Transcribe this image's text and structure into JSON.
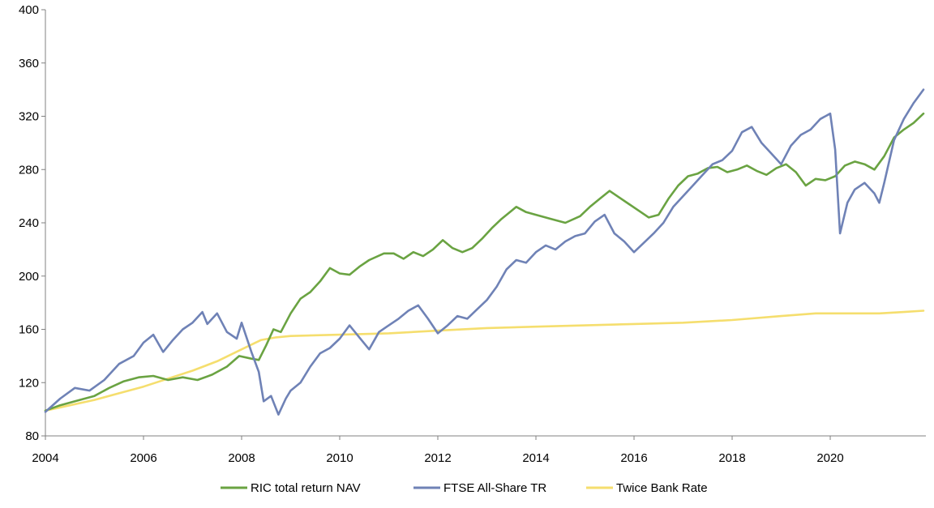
{
  "chart_data": {
    "type": "line",
    "title": "",
    "xlabel": "",
    "ylabel": "",
    "xlim": [
      2004,
      2021.95
    ],
    "ylim": [
      80,
      400
    ],
    "grid": false,
    "legend_position": "bottom",
    "yticks": [
      80,
      120,
      160,
      200,
      240,
      280,
      320,
      360,
      400
    ],
    "xticks": [
      2004,
      2006,
      2008,
      2010,
      2012,
      2014,
      2016,
      2018,
      2020
    ],
    "ytick_labels": [
      "80",
      "120",
      "160",
      "200",
      "240",
      "280",
      "320",
      "360",
      "400"
    ],
    "xtick_labels": [
      "2004",
      "2006",
      "2008",
      "2010",
      "2012",
      "2014",
      "2016",
      "2018",
      "2020"
    ],
    "series": [
      {
        "name": "RIC total return NAV",
        "color": "#6aa342",
        "points": [
          [
            2004.0,
            99
          ],
          [
            2004.3,
            103
          ],
          [
            2004.7,
            107
          ],
          [
            2005.0,
            110
          ],
          [
            2005.3,
            116
          ],
          [
            2005.6,
            121
          ],
          [
            2005.9,
            124
          ],
          [
            2006.2,
            125
          ],
          [
            2006.5,
            122
          ],
          [
            2006.8,
            124
          ],
          [
            2007.1,
            122
          ],
          [
            2007.4,
            126
          ],
          [
            2007.7,
            132
          ],
          [
            2007.95,
            140
          ],
          [
            2008.2,
            138
          ],
          [
            2008.35,
            137
          ],
          [
            2008.5,
            148
          ],
          [
            2008.65,
            160
          ],
          [
            2008.8,
            158
          ],
          [
            2009.0,
            172
          ],
          [
            2009.2,
            183
          ],
          [
            2009.4,
            188
          ],
          [
            2009.6,
            196
          ],
          [
            2009.8,
            206
          ],
          [
            2010.0,
            202
          ],
          [
            2010.2,
            201
          ],
          [
            2010.4,
            207
          ],
          [
            2010.6,
            212
          ],
          [
            2010.9,
            217
          ],
          [
            2011.1,
            217
          ],
          [
            2011.3,
            213
          ],
          [
            2011.5,
            218
          ],
          [
            2011.7,
            215
          ],
          [
            2011.9,
            220
          ],
          [
            2012.1,
            227
          ],
          [
            2012.3,
            221
          ],
          [
            2012.5,
            218
          ],
          [
            2012.7,
            221
          ],
          [
            2012.9,
            228
          ],
          [
            2013.1,
            236
          ],
          [
            2013.3,
            243
          ],
          [
            2013.5,
            249
          ],
          [
            2013.6,
            252
          ],
          [
            2013.8,
            248
          ],
          [
            2014.0,
            246
          ],
          [
            2014.3,
            243
          ],
          [
            2014.6,
            240
          ],
          [
            2014.9,
            245
          ],
          [
            2015.1,
            252
          ],
          [
            2015.3,
            258
          ],
          [
            2015.5,
            264
          ],
          [
            2015.7,
            259
          ],
          [
            2015.9,
            254
          ],
          [
            2016.1,
            249
          ],
          [
            2016.3,
            244
          ],
          [
            2016.5,
            246
          ],
          [
            2016.7,
            258
          ],
          [
            2016.9,
            268
          ],
          [
            2017.1,
            275
          ],
          [
            2017.3,
            277
          ],
          [
            2017.5,
            281
          ],
          [
            2017.7,
            282
          ],
          [
            2017.9,
            278
          ],
          [
            2018.1,
            280
          ],
          [
            2018.3,
            283
          ],
          [
            2018.5,
            279
          ],
          [
            2018.7,
            276
          ],
          [
            2018.9,
            281
          ],
          [
            2019.1,
            284
          ],
          [
            2019.3,
            278
          ],
          [
            2019.5,
            268
          ],
          [
            2019.7,
            273
          ],
          [
            2019.9,
            272
          ],
          [
            2020.1,
            275
          ],
          [
            2020.3,
            283
          ],
          [
            2020.5,
            286
          ],
          [
            2020.7,
            284
          ],
          [
            2020.9,
            280
          ],
          [
            2021.1,
            290
          ],
          [
            2021.3,
            304
          ],
          [
            2021.5,
            310
          ],
          [
            2021.7,
            315
          ],
          [
            2021.9,
            322
          ]
        ]
      },
      {
        "name": "FTSE All-Share TR",
        "color": "#6f82b6",
        "points": [
          [
            2004.0,
            98
          ],
          [
            2004.3,
            108
          ],
          [
            2004.6,
            116
          ],
          [
            2004.9,
            114
          ],
          [
            2005.2,
            122
          ],
          [
            2005.5,
            134
          ],
          [
            2005.8,
            140
          ],
          [
            2006.0,
            150
          ],
          [
            2006.2,
            156
          ],
          [
            2006.4,
            143
          ],
          [
            2006.6,
            152
          ],
          [
            2006.8,
            160
          ],
          [
            2007.0,
            165
          ],
          [
            2007.2,
            173
          ],
          [
            2007.3,
            164
          ],
          [
            2007.5,
            172
          ],
          [
            2007.7,
            158
          ],
          [
            2007.9,
            153
          ],
          [
            2008.0,
            165
          ],
          [
            2008.2,
            143
          ],
          [
            2008.35,
            128
          ],
          [
            2008.45,
            106
          ],
          [
            2008.6,
            110
          ],
          [
            2008.75,
            96
          ],
          [
            2008.9,
            108
          ],
          [
            2009.0,
            114
          ],
          [
            2009.2,
            120
          ],
          [
            2009.4,
            132
          ],
          [
            2009.6,
            142
          ],
          [
            2009.8,
            146
          ],
          [
            2010.0,
            153
          ],
          [
            2010.2,
            163
          ],
          [
            2010.4,
            154
          ],
          [
            2010.6,
            145
          ],
          [
            2010.8,
            158
          ],
          [
            2011.0,
            163
          ],
          [
            2011.2,
            168
          ],
          [
            2011.4,
            174
          ],
          [
            2011.6,
            178
          ],
          [
            2011.8,
            168
          ],
          [
            2012.0,
            157
          ],
          [
            2012.2,
            163
          ],
          [
            2012.4,
            170
          ],
          [
            2012.6,
            168
          ],
          [
            2012.8,
            175
          ],
          [
            2013.0,
            182
          ],
          [
            2013.2,
            192
          ],
          [
            2013.4,
            205
          ],
          [
            2013.6,
            212
          ],
          [
            2013.8,
            210
          ],
          [
            2014.0,
            218
          ],
          [
            2014.2,
            223
          ],
          [
            2014.4,
            220
          ],
          [
            2014.6,
            226
          ],
          [
            2014.8,
            230
          ],
          [
            2015.0,
            232
          ],
          [
            2015.2,
            241
          ],
          [
            2015.4,
            246
          ],
          [
            2015.6,
            232
          ],
          [
            2015.8,
            226
          ],
          [
            2016.0,
            218
          ],
          [
            2016.2,
            225
          ],
          [
            2016.4,
            232
          ],
          [
            2016.6,
            240
          ],
          [
            2016.8,
            252
          ],
          [
            2017.0,
            260
          ],
          [
            2017.2,
            268
          ],
          [
            2017.4,
            276
          ],
          [
            2017.6,
            284
          ],
          [
            2017.8,
            287
          ],
          [
            2018.0,
            294
          ],
          [
            2018.2,
            308
          ],
          [
            2018.4,
            312
          ],
          [
            2018.6,
            300
          ],
          [
            2018.8,
            292
          ],
          [
            2019.0,
            284
          ],
          [
            2019.2,
            298
          ],
          [
            2019.4,
            306
          ],
          [
            2019.6,
            310
          ],
          [
            2019.8,
            318
          ],
          [
            2020.0,
            322
          ],
          [
            2020.1,
            295
          ],
          [
            2020.2,
            232
          ],
          [
            2020.35,
            255
          ],
          [
            2020.5,
            265
          ],
          [
            2020.7,
            270
          ],
          [
            2020.9,
            262
          ],
          [
            2021.0,
            255
          ],
          [
            2021.1,
            270
          ],
          [
            2021.3,
            302
          ],
          [
            2021.5,
            318
          ],
          [
            2021.7,
            330
          ],
          [
            2021.9,
            340
          ]
        ]
      },
      {
        "name": "Twice Bank Rate",
        "color": "#f5de6e",
        "points": [
          [
            2004.0,
            99
          ],
          [
            2004.5,
            103
          ],
          [
            2005.0,
            107
          ],
          [
            2005.5,
            112
          ],
          [
            2006.0,
            117
          ],
          [
            2006.5,
            123
          ],
          [
            2007.0,
            129
          ],
          [
            2007.5,
            136
          ],
          [
            2008.0,
            145
          ],
          [
            2008.4,
            152
          ],
          [
            2008.7,
            154
          ],
          [
            2009.0,
            155
          ],
          [
            2010.0,
            156
          ],
          [
            2011.0,
            157
          ],
          [
            2012.0,
            159
          ],
          [
            2013.0,
            161
          ],
          [
            2014.0,
            162
          ],
          [
            2015.0,
            163
          ],
          [
            2016.0,
            164
          ],
          [
            2017.0,
            165
          ],
          [
            2018.0,
            167
          ],
          [
            2019.0,
            170
          ],
          [
            2019.7,
            172
          ],
          [
            2020.5,
            172
          ],
          [
            2021.0,
            172
          ],
          [
            2021.5,
            173
          ],
          [
            2021.9,
            174
          ]
        ]
      }
    ]
  }
}
